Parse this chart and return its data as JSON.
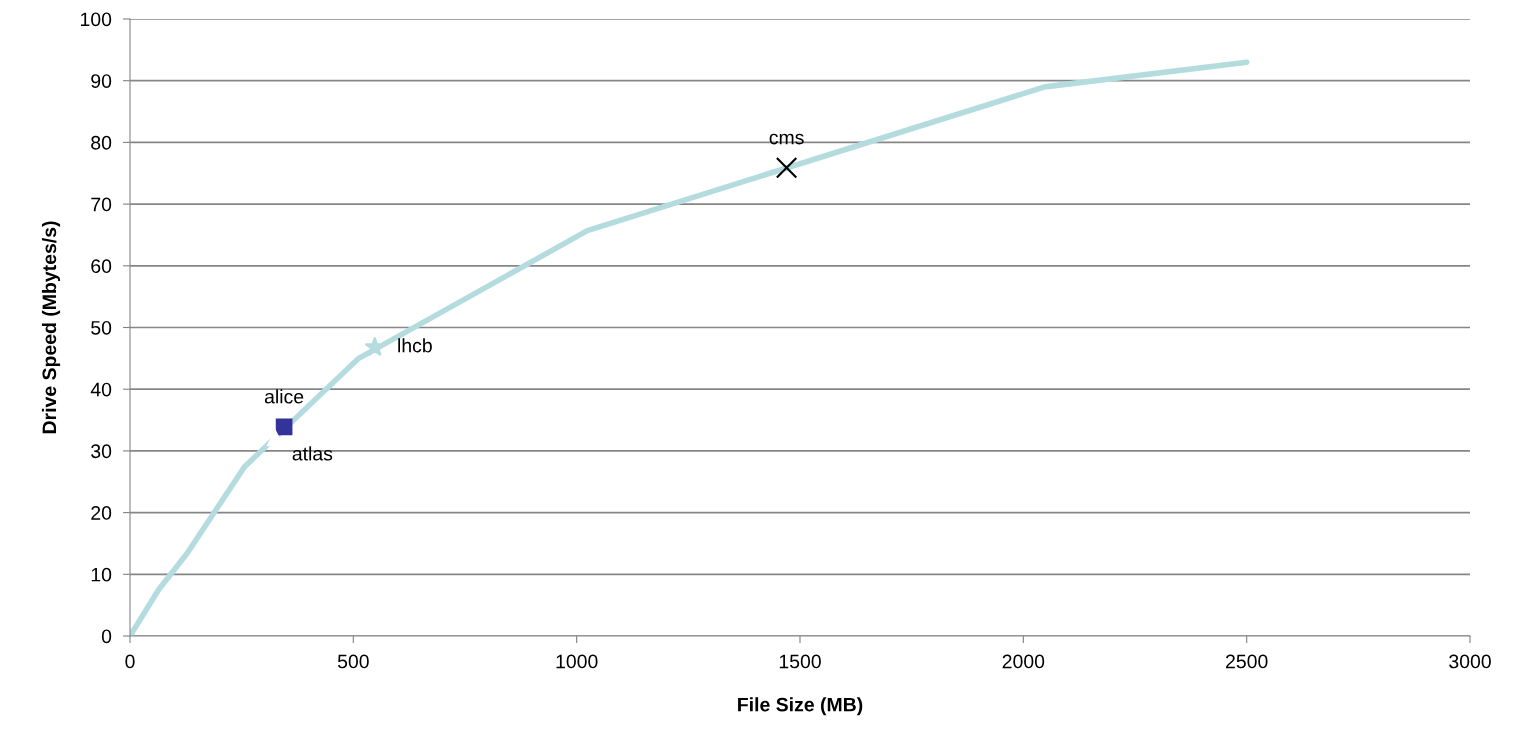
{
  "chart_data": {
    "type": "line",
    "xlabel": "File Size (MB)",
    "ylabel": "Drive Speed (Mbytes/s)",
    "xlim": [
      0,
      3000
    ],
    "xticks": [
      0,
      500,
      1000,
      1500,
      2000,
      2500,
      3000
    ],
    "ylim": [
      0,
      100
    ],
    "yticks": [
      0,
      10,
      20,
      30,
      40,
      50,
      60,
      70,
      80,
      90,
      100
    ],
    "grid": "y",
    "legend": false,
    "series": [
      {
        "color": "#b4dcdf",
        "marker": "none",
        "x": [
          0,
          64,
          128,
          256,
          512,
          1024,
          2048,
          2500
        ],
        "values": [
          0,
          7.5,
          13.4,
          27.4,
          45,
          65.7,
          89,
          93
        ]
      },
      {
        "type": "scatter",
        "name": "alice",
        "color": "#333399",
        "marker": "square",
        "x": [
          345
        ],
        "values": [
          33.9
        ]
      },
      {
        "type": "scatter",
        "name": "atlas",
        "color": "#ffffff",
        "marker": "triangle",
        "x": [
          325
        ],
        "values": [
          32.1
        ]
      },
      {
        "type": "scatter",
        "name": "lhcb",
        "color": "#b4dcdf",
        "marker": "star",
        "x": [
          548
        ],
        "values": [
          46.8
        ]
      },
      {
        "type": "scatter",
        "name": "cms",
        "color": "#000000",
        "marker": "cross",
        "x": [
          1470
        ],
        "values": [
          75.9
        ]
      }
    ]
  }
}
